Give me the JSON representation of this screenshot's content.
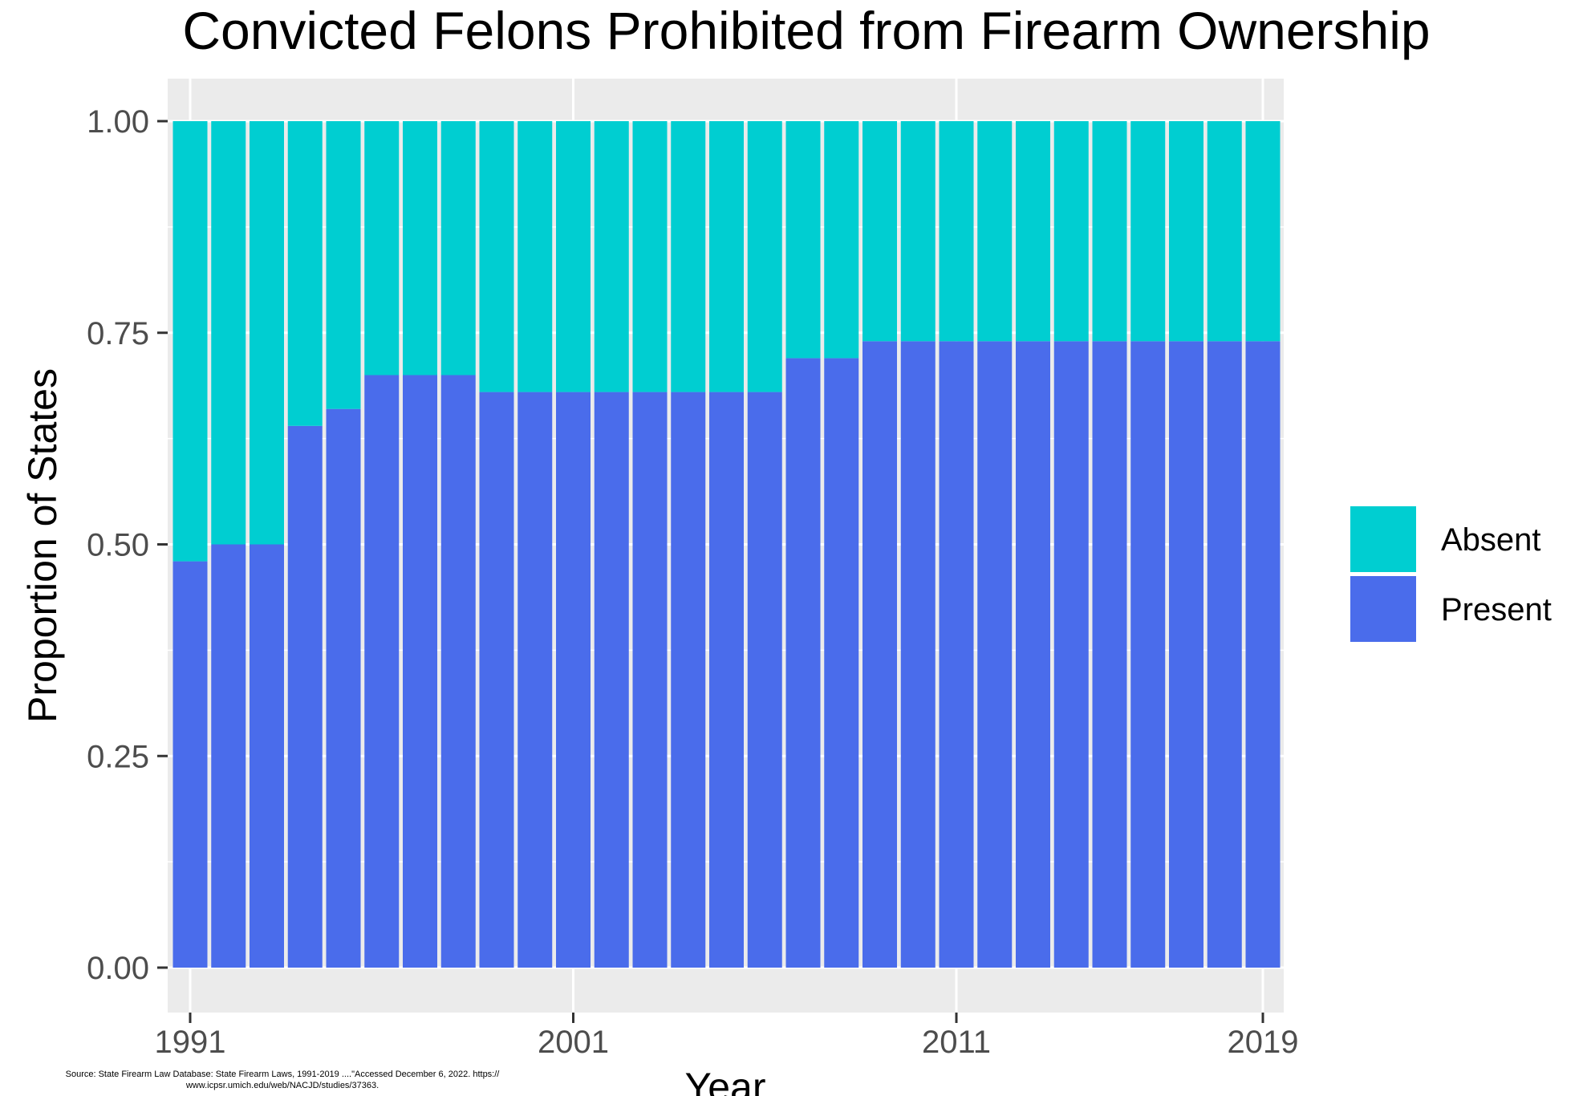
{
  "chart_data": {
    "type": "bar",
    "stacked": true,
    "title": "Convicted Felons Prohibited from Firearm Ownership",
    "xlabel": "Year",
    "ylabel": "Proportion of States",
    "x": [
      1991,
      1992,
      1993,
      1994,
      1995,
      1996,
      1997,
      1998,
      1999,
      2000,
      2001,
      2002,
      2003,
      2004,
      2005,
      2006,
      2007,
      2008,
      2009,
      2010,
      2011,
      2012,
      2013,
      2014,
      2015,
      2016,
      2017,
      2018,
      2019
    ],
    "x_tick_labels": [
      "1991",
      "2001",
      "2011",
      "2019"
    ],
    "x_ticks": [
      1991,
      2001,
      2011,
      2019
    ],
    "y_tick_labels": [
      "0.00",
      "0.25",
      "0.50",
      "0.75",
      "1.00"
    ],
    "y_ticks": [
      0,
      0.25,
      0.5,
      0.75,
      1
    ],
    "ylim": [
      0,
      1
    ],
    "grid": true,
    "legend_position": "right",
    "series": [
      {
        "name": "Present",
        "color": "#4A6CEB",
        "values": [
          0.48,
          0.5,
          0.5,
          0.64,
          0.66,
          0.7,
          0.7,
          0.7,
          0.68,
          0.68,
          0.68,
          0.68,
          0.68,
          0.68,
          0.68,
          0.68,
          0.72,
          0.72,
          0.74,
          0.74,
          0.74,
          0.74,
          0.74,
          0.74,
          0.74,
          0.74,
          0.74,
          0.74,
          0.74
        ]
      },
      {
        "name": "Absent",
        "color": "#00CED1",
        "values": [
          0.52,
          0.5,
          0.5,
          0.36,
          0.34,
          0.3,
          0.3,
          0.3,
          0.32,
          0.32,
          0.32,
          0.32,
          0.32,
          0.32,
          0.32,
          0.32,
          0.28,
          0.28,
          0.26,
          0.26,
          0.26,
          0.26,
          0.26,
          0.26,
          0.26,
          0.26,
          0.26,
          0.26,
          0.26
        ]
      }
    ],
    "legend": [
      {
        "name": "Absent",
        "color": "#00CED1"
      },
      {
        "name": "Present",
        "color": "#4A6CEB"
      }
    ]
  },
  "source_line1": "Source: State Firearm Law Database: State Firearm Laws, 1991-2019 ....\"Accessed December 6, 2022. https://",
  "source_line2": "www.icpsr.umich.edu/web/NACJD/studies/37363."
}
